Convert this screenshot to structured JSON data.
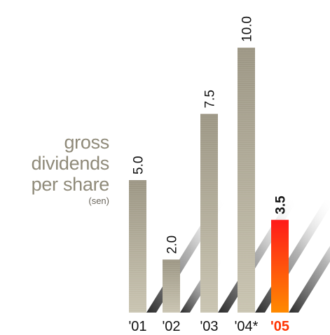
{
  "colors": {
    "bar_light": "#c4bfad",
    "bar_dark": "#9c9684",
    "highlight_top": "#ff1a1a",
    "highlight_bottom": "#ff8a00",
    "highlight_label": "#ff3300",
    "label_text": "#111111",
    "title_text": "#8f8a79",
    "shadow": "#2a2a2a"
  },
  "title": {
    "line1": "gross",
    "line2": "dividends",
    "line3": "per share",
    "unit": "(sen)"
  },
  "chart_data": {
    "type": "bar",
    "categories": [
      "'01",
      "'02",
      "'03",
      "'04*",
      "'05"
    ],
    "values": [
      5.0,
      2.0,
      7.5,
      10.0,
      3.5
    ],
    "value_labels": [
      "5.0",
      "2.0",
      "7.5",
      "10.0",
      "3.5"
    ],
    "highlight_index": 4,
    "ylim": [
      0,
      10.0
    ],
    "grid": false,
    "legend": "none"
  }
}
